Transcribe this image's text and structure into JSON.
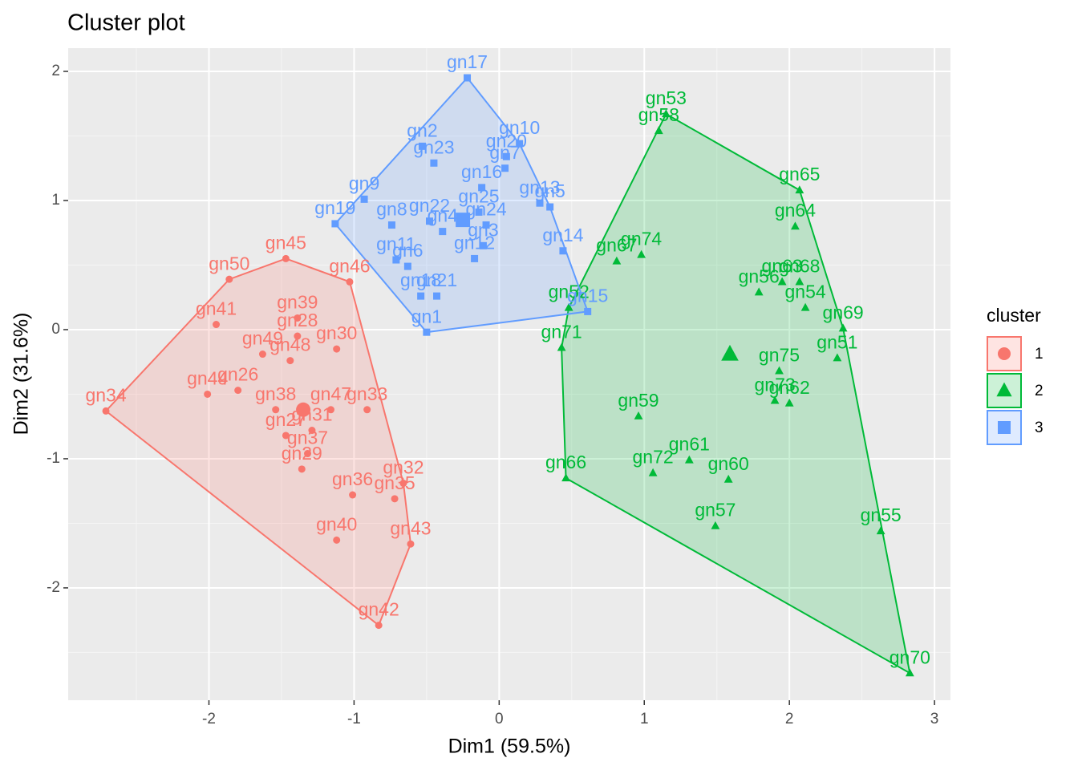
{
  "chart_data": {
    "type": "scatter",
    "title": "Cluster plot",
    "x_label": "Dim1 (59.5%)",
    "y_label": "Dim2 (31.6%)",
    "xlim": [
      -2.97,
      3.11
    ],
    "ylim": [
      -2.87,
      2.18
    ],
    "xticks": [
      -2,
      -1,
      0,
      1,
      2,
      3
    ],
    "yticks": [
      -2,
      -1,
      0,
      1,
      2
    ],
    "grid": true,
    "legend_title": "cluster",
    "legend_position": "right",
    "series": [
      {
        "name": "1",
        "color": "#F8766D",
        "shape": "circle",
        "labels": [
          "gn34",
          "gn50",
          "gn45",
          "gn46",
          "gn41",
          "gn39",
          "gn28",
          "gn30",
          "gn49",
          "gn48",
          "gn44",
          "gn26",
          "gn38",
          "gn47",
          "gn33",
          "gn27",
          "gn31",
          "gn37",
          "gn29",
          "gn36",
          "gn32",
          "gn35",
          "gn40",
          "gn43",
          "gn42"
        ],
        "x": [
          -2.71,
          -1.86,
          -1.47,
          -1.03,
          -1.95,
          -1.39,
          -1.39,
          -1.12,
          -1.63,
          -1.44,
          -2.01,
          -1.8,
          -1.54,
          -1.16,
          -0.91,
          -1.47,
          -1.29,
          -1.32,
          -1.36,
          -1.01,
          -0.66,
          -0.72,
          -1.12,
          -0.61,
          -0.83
        ],
        "y": [
          -0.63,
          0.39,
          0.55,
          0.37,
          0.04,
          0.09,
          -0.05,
          -0.15,
          -0.19,
          -0.24,
          -0.5,
          -0.47,
          -0.62,
          -0.62,
          -0.62,
          -0.82,
          -0.78,
          -0.96,
          -1.08,
          -1.28,
          -1.19,
          -1.31,
          -1.63,
          -1.66,
          -2.29
        ],
        "center": [
          -1.35,
          -0.62
        ]
      },
      {
        "name": "2",
        "color": "#00BA38",
        "shape": "triangle",
        "labels": [
          "gn53",
          "gn58",
          "gn65",
          "gn64",
          "gn67",
          "gn74",
          "gn63",
          "gn68",
          "gn56",
          "gn54",
          "gn69",
          "gn51",
          "gn52",
          "gn71",
          "gn75",
          "gn73",
          "gn62",
          "gn59",
          "gn61",
          "gn72",
          "gn60",
          "gn66",
          "gn57",
          "gn55",
          "gn70"
        ],
        "x": [
          1.15,
          1.1,
          2.07,
          2.04,
          0.81,
          0.98,
          1.95,
          2.07,
          1.79,
          2.11,
          2.37,
          2.33,
          0.48,
          0.43,
          1.93,
          1.9,
          2.0,
          0.96,
          1.31,
          1.06,
          1.58,
          0.46,
          1.49,
          2.63,
          2.83
        ],
        "y": [
          1.67,
          1.54,
          1.08,
          0.8,
          0.53,
          0.58,
          0.37,
          0.37,
          0.29,
          0.17,
          0.01,
          -0.22,
          0.17,
          -0.14,
          -0.32,
          -0.55,
          -0.57,
          -0.67,
          -1.01,
          -1.11,
          -1.16,
          -1.15,
          -1.52,
          -1.56,
          -2.66
        ],
        "center": [
          1.59,
          -0.19
        ]
      },
      {
        "name": "3",
        "color": "#619CFF",
        "shape": "square",
        "labels": [
          "gn17",
          "gn2",
          "gn23",
          "gn10",
          "gn20",
          "gn7",
          "gn16",
          "gn13",
          "gn5",
          "gn9",
          "gn19",
          "gn8",
          "gn22",
          "gn25",
          "gn24",
          "gn4",
          "gn12",
          "gn3",
          "gn11",
          "gn6",
          "gn18",
          "gn21",
          "gn1",
          "gn14",
          "gn15"
        ],
        "x": [
          -0.22,
          -0.53,
          -0.45,
          0.14,
          0.05,
          0.04,
          -0.12,
          0.28,
          0.35,
          -0.93,
          -1.13,
          -0.74,
          -0.48,
          -0.14,
          -0.09,
          -0.39,
          -0.17,
          -0.11,
          -0.71,
          -0.63,
          -0.54,
          -0.43,
          -0.5,
          0.44,
          0.61
        ],
        "y": [
          1.95,
          1.42,
          1.29,
          1.44,
          1.34,
          1.25,
          1.1,
          0.98,
          0.95,
          1.01,
          0.82,
          0.81,
          0.84,
          0.91,
          0.81,
          0.76,
          0.55,
          0.65,
          0.54,
          0.49,
          0.26,
          0.26,
          -0.02,
          0.61,
          0.14
        ],
        "center": [
          -0.25,
          0.85
        ]
      }
    ]
  }
}
